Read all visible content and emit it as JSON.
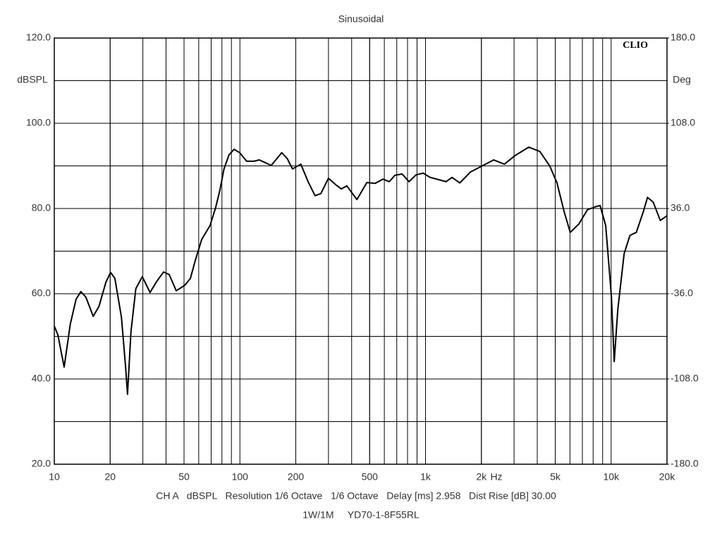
{
  "chart_data": {
    "type": "line",
    "title": "Sinusoidal",
    "watermark": "CLIO",
    "ylabel": "dBSPL",
    "y2label": "Deg",
    "xlabel": "Hz",
    "footer": [
      "CH A   dBSPL   Resolution 1/6 Octave   1/6 Octave   Delay [ms] 2.958   Dist Rise [dB] 30.00",
      "1W/1M     YD70-1-8F55RL"
    ],
    "xscale": "log",
    "grid": true,
    "xlim": [
      10,
      20000
    ],
    "xticks": [
      10,
      20,
      50,
      100,
      200,
      500,
      {
        "value": 1000,
        "label": "1k"
      },
      {
        "value": 2000,
        "label": "2k"
      },
      {
        "value": 5000,
        "label": "5k"
      },
      {
        "value": 10000,
        "label": "10k"
      },
      {
        "value": 20000,
        "label": "20k"
      }
    ],
    "ylim": [
      20,
      120
    ],
    "yticks": [
      {
        "value": 20,
        "label": "20.0"
      },
      {
        "value": 40,
        "label": "40.0"
      },
      {
        "value": 60,
        "label": "60.0"
      },
      {
        "value": 80,
        "label": "80.0"
      },
      {
        "value": 100,
        "label": "100.0"
      },
      {
        "value": 120,
        "label": "120.0"
      }
    ],
    "y2lim": [
      -180,
      180
    ],
    "y2ticks": [
      {
        "value": -180,
        "label": "-180.0"
      },
      {
        "value": -108,
        "label": "-108.0"
      },
      {
        "value": -36,
        "label": "-36.0"
      },
      {
        "value": 36,
        "label": "36.0"
      },
      {
        "value": 108,
        "label": "108.0"
      },
      {
        "value": 180,
        "label": "180.0"
      }
    ],
    "x": [
      10,
      10.45,
      11.3,
      12.2,
      13.1,
      13.9,
      14.8,
      16.2,
      17.4,
      19,
      20.1,
      21.2,
      23,
      24.2,
      24.8,
      25.9,
      27.5,
      29.8,
      32.8,
      35.5,
      38.8,
      41.6,
      45.4,
      50.5,
      54.1,
      57.5,
      62.2,
      69,
      74,
      78,
      82.1,
      87.4,
      93,
      99.7,
      108.8,
      118.8,
      127.2,
      147.5,
      168,
      180,
      192,
      213,
      233,
      254,
      273,
      300,
      328,
      352,
      377,
      427,
      483,
      535,
      590,
      638,
      684,
      748,
      815,
      890,
      970,
      1060,
      1170,
      1290,
      1390,
      1530,
      1750,
      2000,
      2330,
      2660,
      3030,
      3600,
      4130,
      4680,
      5110,
      5580,
      6020,
      6710,
      7450,
      8350,
      8720,
      9350,
      10030,
      10390,
      10860,
      11750,
      12630,
      13670,
      14920,
      15700,
      16850,
      18400,
      20000
    ],
    "series": [
      {
        "name": "SPL",
        "color": "#000000",
        "values": [
          52.4,
          50.4,
          42.8,
          52.9,
          58.7,
          60.5,
          59.2,
          54.7,
          57,
          62.8,
          65,
          63.6,
          54.5,
          43,
          36.4,
          51.2,
          61.2,
          64,
          60.3,
          62.8,
          65.1,
          64.5,
          60.7,
          62,
          63.6,
          67.8,
          72.7,
          76,
          80.2,
          84.3,
          89.3,
          92.6,
          93.9,
          93.1,
          91.1,
          91.1,
          91.4,
          90.1,
          93.1,
          91.7,
          89.3,
          90.4,
          86.3,
          83,
          83.5,
          87.1,
          85.6,
          84.6,
          85.3,
          82.1,
          86.1,
          85.9,
          86.9,
          86.3,
          87.8,
          88.1,
          86.3,
          87.9,
          88.3,
          87.3,
          86.8,
          86.3,
          87.3,
          86,
          88.6,
          89.9,
          91.4,
          90.4,
          92.4,
          94.4,
          93.4,
          89.9,
          86,
          79.3,
          74.4,
          76.4,
          79.7,
          80.5,
          80.7,
          76,
          59.5,
          44.1,
          56.2,
          69.4,
          73.7,
          74.4,
          79.3,
          82.6,
          81.5,
          77.2,
          78.3
        ]
      }
    ]
  }
}
